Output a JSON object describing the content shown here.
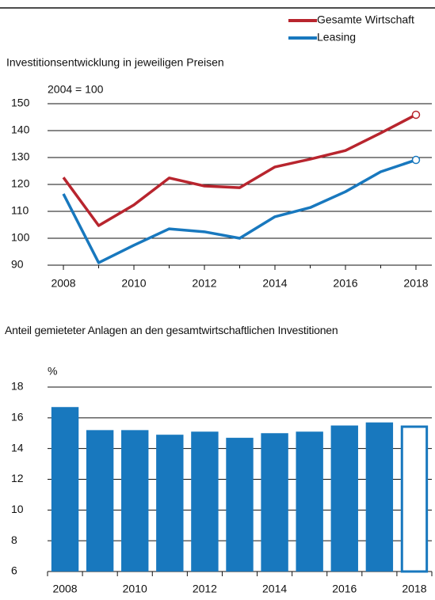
{
  "chart_data": [
    {
      "type": "line",
      "title": "Investitionsentwicklung in jeweiligen Preisen",
      "subtitle": "2004 = 100",
      "x": [
        2008,
        2009,
        2010,
        2011,
        2012,
        2013,
        2014,
        2015,
        2016,
        2017,
        2018
      ],
      "series": [
        {
          "name": "Gesamte Wirtschaft",
          "color": "#b8252e",
          "values": [
            122.6,
            104.7,
            112.4,
            122.4,
            119.4,
            118.8,
            126.5,
            129.4,
            132.6,
            139.1,
            145.9
          ]
        },
        {
          "name": "Leasing",
          "color": "#1878be",
          "values": [
            116.5,
            90.9,
            97.4,
            103.5,
            102.4,
            100,
            108,
            111.4,
            117.3,
            124.7,
            129.1
          ]
        }
      ],
      "xlim": [
        2007.55,
        2018.45
      ],
      "xticks": [
        2008,
        2010,
        2012,
        2014,
        2016,
        2018
      ],
      "ylim": [
        90,
        150
      ],
      "yticks": [
        90,
        100,
        110,
        120,
        130,
        140,
        150
      ],
      "grid": true,
      "legend": "top-right"
    },
    {
      "type": "bar",
      "title": "Anteil gemieteter Anlagen an den gesamtwirtschaftlichen Investitio­nen",
      "subtitle": "%",
      "categories": [
        "2008",
        null,
        "2010",
        null,
        "2012",
        null,
        "2014",
        null,
        "2016",
        null,
        "2018"
      ],
      "values": [
        16.7,
        15.2,
        15.2,
        14.9,
        15.1,
        14.7,
        15.0,
        15.1,
        15.5,
        15.7,
        15.5
      ],
      "color": "#1878be",
      "ylim": [
        6,
        18
      ],
      "yticks": [
        6,
        8,
        10,
        12,
        14,
        16,
        18
      ],
      "grid": true
    }
  ]
}
